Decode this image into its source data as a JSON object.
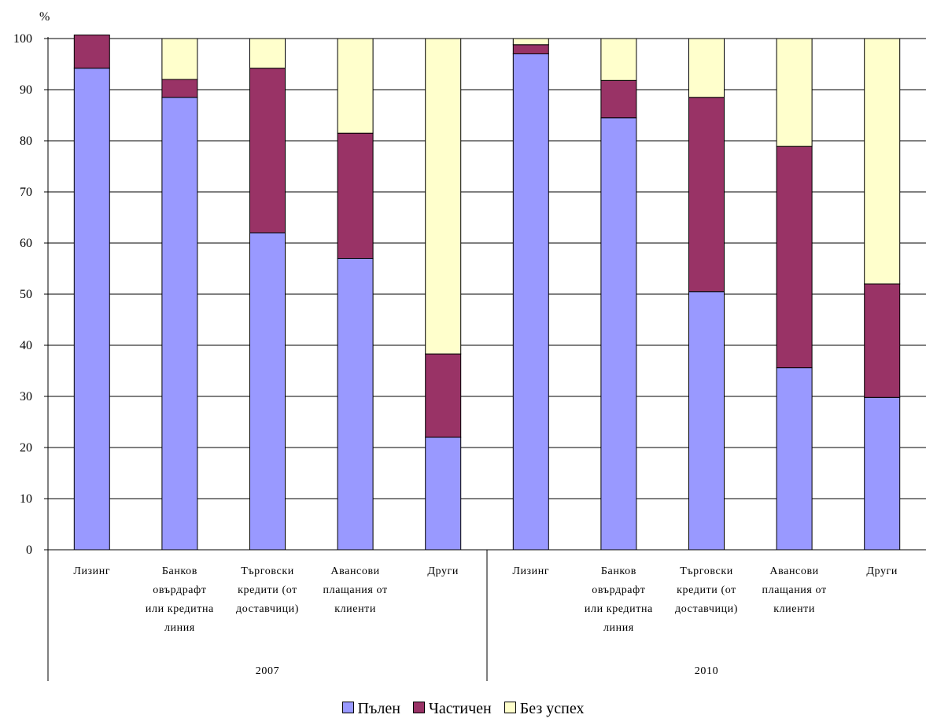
{
  "chart_data": {
    "type": "bar",
    "stacked": true,
    "title": "",
    "ylabel": "%",
    "ylim": [
      0,
      100
    ],
    "yticks": [
      0,
      10,
      20,
      30,
      40,
      50,
      60,
      70,
      80,
      90,
      100
    ],
    "grid": true,
    "legend_position": "bottom",
    "groups": [
      {
        "label": "2007",
        "categories": [
          [
            "Лизинг"
          ],
          [
            "Банков",
            "овърдрафт",
            "или кредитна",
            "линия"
          ],
          [
            "Търговски",
            "кредити (от",
            "доставчици)"
          ],
          [
            "Авансови",
            "плащания от",
            "клиенти"
          ],
          [
            "Други"
          ]
        ]
      },
      {
        "label": "2010",
        "categories": [
          [
            "Лизинг"
          ],
          [
            "Банков",
            "овърдрафт",
            "или кредитна",
            "линия"
          ],
          [
            "Търговски",
            "кредити (от",
            "доставчици)"
          ],
          [
            "Авансови",
            "плащания от",
            "клиенти"
          ],
          [
            "Други"
          ]
        ]
      }
    ],
    "series": [
      {
        "name": "Пълен",
        "color": "#9999ff",
        "values": [
          94.2,
          88.5,
          62.0,
          57.0,
          22.0,
          97.0,
          84.5,
          50.5,
          35.6,
          29.8
        ]
      },
      {
        "name": "Частичен",
        "color": "#993366",
        "values": [
          6.5,
          3.5,
          32.2,
          24.5,
          16.3,
          1.8,
          7.3,
          38.0,
          43.3,
          22.2
        ]
      },
      {
        "name": "Без успех",
        "color": "#ffffcc",
        "values": [
          0.0,
          8.0,
          5.8,
          18.5,
          61.7,
          1.2,
          8.2,
          11.5,
          21.1,
          48.0
        ]
      }
    ]
  }
}
